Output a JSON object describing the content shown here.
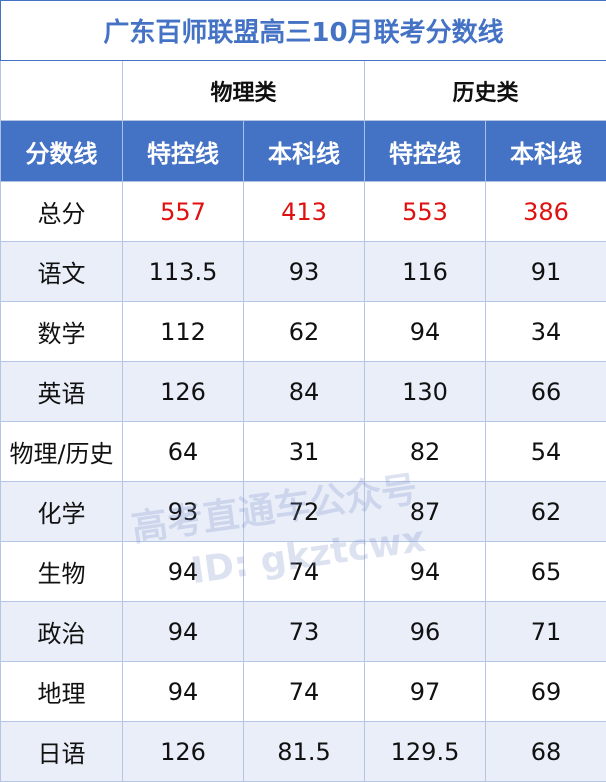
{
  "title": "广东百师联盟高三10月联考分数线",
  "categories": [
    "物理类",
    "历史类"
  ],
  "headers": [
    "分数线",
    "特控线",
    "本科线",
    "特控线",
    "本科线"
  ],
  "rows": [
    {
      "subject": "总分",
      "values": [
        "557",
        "413",
        "553",
        "386"
      ],
      "highlight": true
    },
    {
      "subject": "语文",
      "values": [
        "113.5",
        "93",
        "116",
        "91"
      ]
    },
    {
      "subject": "数学",
      "values": [
        "112",
        "62",
        "94",
        "34"
      ]
    },
    {
      "subject": "英语",
      "values": [
        "126",
        "84",
        "130",
        "66"
      ]
    },
    {
      "subject": "物理/历史",
      "values": [
        "64",
        "31",
        "82",
        "54"
      ]
    },
    {
      "subject": "化学",
      "values": [
        "93",
        "72",
        "87",
        "62"
      ]
    },
    {
      "subject": "生物",
      "values": [
        "94",
        "74",
        "94",
        "65"
      ]
    },
    {
      "subject": "政治",
      "values": [
        "94",
        "73",
        "96",
        "71"
      ]
    },
    {
      "subject": "地理",
      "values": [
        "94",
        "74",
        "97",
        "69"
      ]
    },
    {
      "subject": "日语",
      "values": [
        "126",
        "81.5",
        "129.5",
        "68"
      ]
    }
  ],
  "watermark": {
    "line1": "高考直通车公众号",
    "line2": "ID: gkztcwx"
  },
  "colors": {
    "header_bg": "#4472c4",
    "title": "#4472c4",
    "highlight": "#e01010",
    "alt_row": "#e9eef8"
  }
}
